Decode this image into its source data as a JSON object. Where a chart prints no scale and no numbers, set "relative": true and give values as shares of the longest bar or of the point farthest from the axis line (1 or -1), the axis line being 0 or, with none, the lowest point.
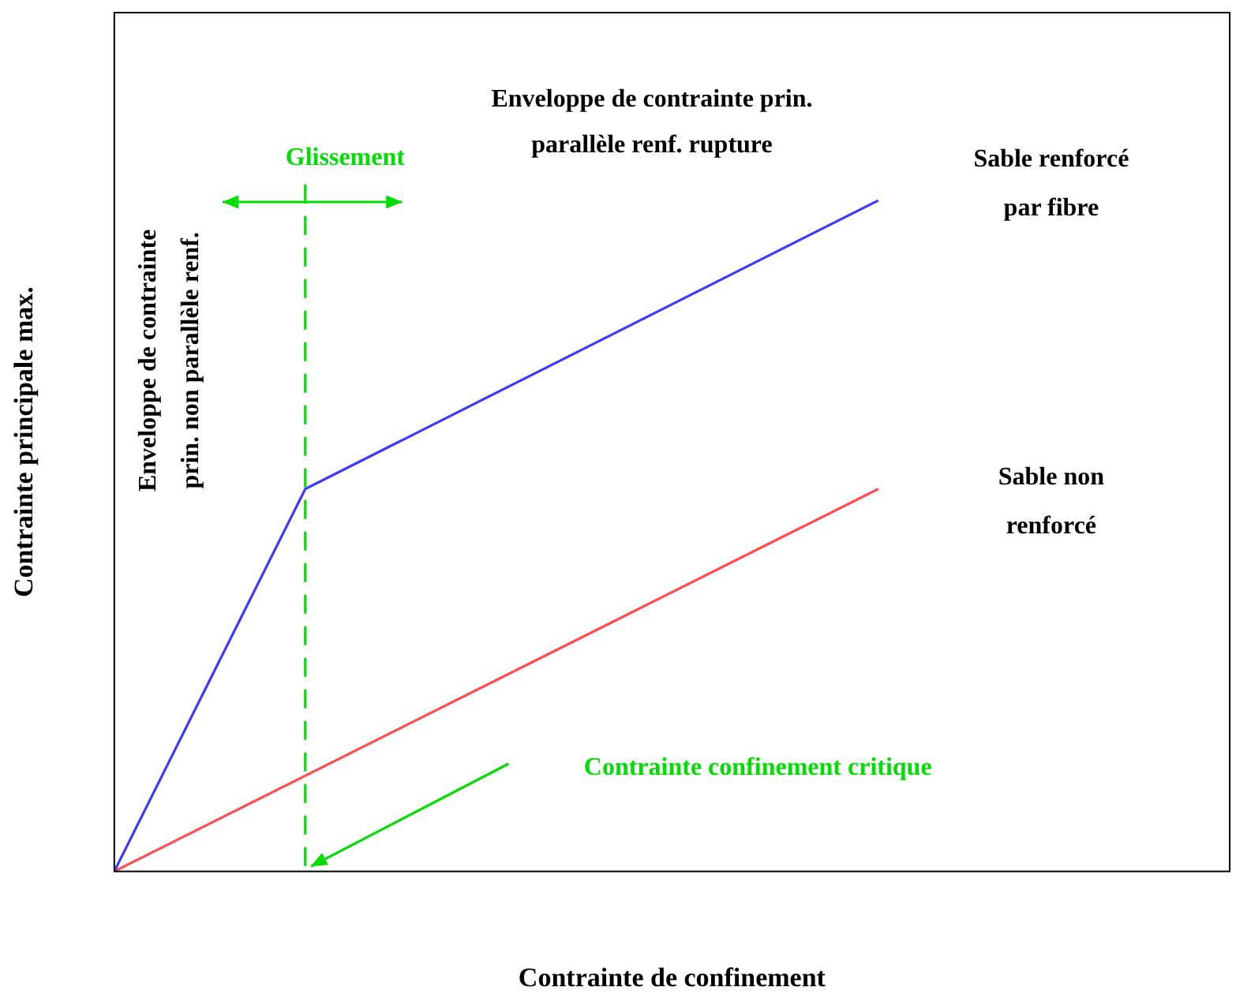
{
  "chart_data": {
    "type": "line",
    "xlabel": "Contrainte de confinement",
    "ylabel": "Contrainte principale max.",
    "relative": true,
    "legend": false,
    "marker": "none",
    "line_style": "solid",
    "categories": [
      null,
      null,
      null,
      null,
      null
    ],
    "series": [
      {
        "name": "Sable renforcé par fibre",
        "color": "#3b3bff",
        "values": [
          0,
          0.57,
          null,
          null,
          1
        ]
      },
      {
        "name": "Sable non renforcé",
        "color": "#ff4d4d",
        "values": [
          0,
          null,
          null,
          null,
          0.57
        ]
      }
    ],
    "annotations": [
      "Enveloppe de contrainte prin. parallèle renf. rupture",
      "Enveloppe de contrainte prin. non parallèle renf.",
      "Glissement",
      "Contrainte confinement critique"
    ]
  }
}
